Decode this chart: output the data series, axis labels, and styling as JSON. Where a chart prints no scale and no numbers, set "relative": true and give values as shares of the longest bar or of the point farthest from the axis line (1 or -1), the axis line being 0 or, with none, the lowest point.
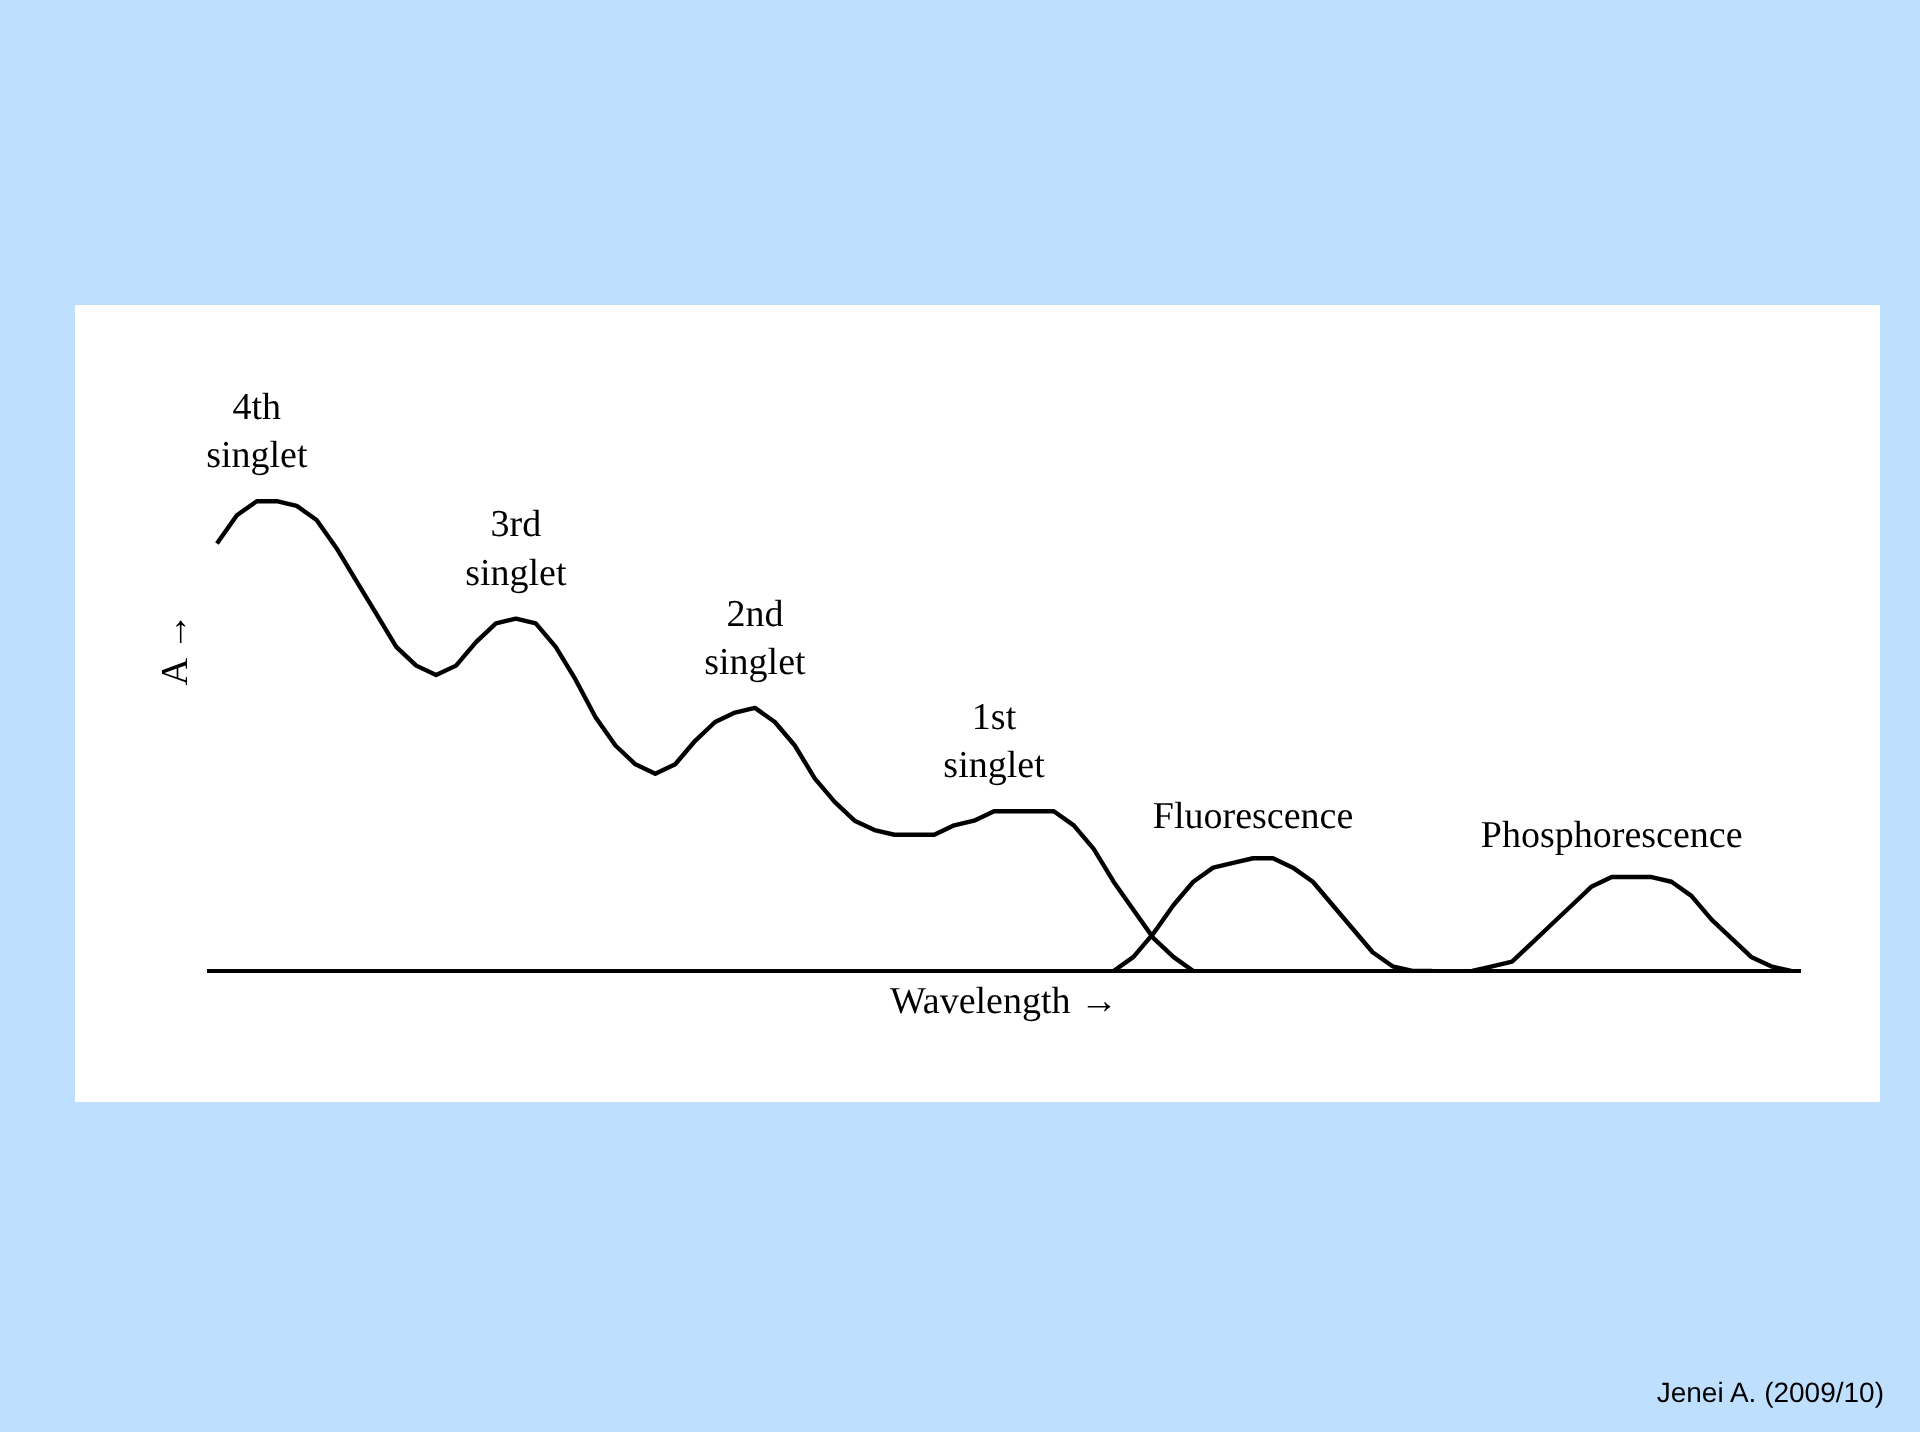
{
  "chart_data": {
    "type": "line",
    "relative": true,
    "xlabel": "Wavelength →",
    "ylabel": "A →",
    "tick_labels": false,
    "categories": [
      null,
      null,
      null,
      null,
      null,
      null,
      null,
      null,
      null,
      null,
      null,
      null,
      null,
      null,
      null,
      null,
      null,
      null,
      null,
      null,
      null,
      null,
      null,
      null,
      null,
      null,
      null,
      null,
      null,
      null,
      null,
      null,
      null,
      null,
      null,
      null,
      null,
      null,
      null,
      null,
      null,
      null,
      null,
      null,
      null,
      null,
      null,
      null,
      null,
      null,
      null,
      null,
      null,
      null,
      null,
      null,
      null,
      null,
      null,
      null,
      null,
      null,
      null,
      null,
      null,
      null,
      null,
      null,
      null,
      null,
      null,
      null,
      null,
      null,
      null,
      null,
      null,
      null,
      null,
      null
    ],
    "series": [
      {
        "color": "#000000",
        "values": [
          0.91,
          0.97,
          1.0,
          1.0,
          0.99,
          0.96,
          0.9,
          0.83,
          0.76,
          0.69,
          0.65,
          0.63,
          0.65,
          0.7,
          0.74,
          0.75,
          0.74,
          0.69,
          0.62,
          0.54,
          0.48,
          0.44,
          0.42,
          0.44,
          0.49,
          0.53,
          0.55,
          0.56,
          0.53,
          0.48,
          0.41,
          0.36,
          0.32,
          0.3,
          0.29,
          0.29,
          0.29,
          0.31,
          0.32,
          0.34,
          0.34,
          0.34,
          0.34,
          0.31,
          0.26,
          0.19,
          0.13,
          0.07,
          0.03,
          0.0,
          null,
          null,
          null,
          null,
          null,
          null,
          null,
          null,
          null,
          null,
          null,
          null,
          null,
          null,
          null,
          null,
          null,
          null,
          null,
          null,
          null,
          null,
          null,
          null,
          null,
          null,
          null,
          null,
          null,
          null
        ]
      },
      {
        "name": "Fluorescence",
        "color": "#000000",
        "values": [
          null,
          null,
          null,
          null,
          null,
          null,
          null,
          null,
          null,
          null,
          null,
          null,
          null,
          null,
          null,
          null,
          null,
          null,
          null,
          null,
          null,
          null,
          null,
          null,
          null,
          null,
          null,
          null,
          null,
          null,
          null,
          null,
          null,
          null,
          null,
          null,
          null,
          null,
          null,
          null,
          null,
          null,
          null,
          null,
          null,
          0.0,
          0.03,
          0.08,
          0.14,
          0.19,
          0.22,
          0.23,
          0.24,
          0.24,
          0.22,
          0.19,
          0.14,
          0.09,
          0.04,
          0.01,
          0.0,
          0.0,
          null,
          null,
          null,
          null,
          null,
          null,
          null,
          null,
          null,
          null,
          null,
          null,
          null,
          null,
          null,
          null,
          null,
          null
        ]
      },
      {
        "name": "Phosphorescence",
        "color": "#000000",
        "values": [
          null,
          null,
          null,
          null,
          null,
          null,
          null,
          null,
          null,
          null,
          null,
          null,
          null,
          null,
          null,
          null,
          null,
          null,
          null,
          null,
          null,
          null,
          null,
          null,
          null,
          null,
          null,
          null,
          null,
          null,
          null,
          null,
          null,
          null,
          null,
          null,
          null,
          null,
          null,
          null,
          null,
          null,
          null,
          null,
          null,
          null,
          null,
          null,
          null,
          null,
          null,
          null,
          null,
          null,
          null,
          null,
          null,
          null,
          null,
          null,
          null,
          null,
          null,
          0.0,
          0.01,
          0.02,
          0.06,
          0.1,
          0.14,
          0.18,
          0.2,
          0.2,
          0.2,
          0.19,
          0.16,
          0.11,
          0.07,
          0.03,
          0.01,
          0.0
        ]
      }
    ],
    "annotations": [
      {
        "text": "4th\nsinglet",
        "y": 1.0
      },
      {
        "text": "3rd\nsinglet",
        "y": 0.75
      },
      {
        "text": "2nd\nsinglet",
        "y": 0.56
      },
      {
        "text": "1st\nsinglet",
        "y": 0.34
      },
      "Jenei A. (2009/10)"
    ]
  }
}
